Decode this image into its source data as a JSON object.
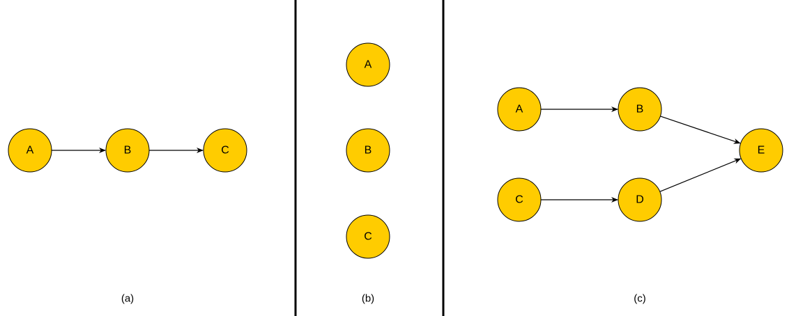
{
  "colors": {
    "node_fill": "#ffcc00",
    "node_stroke": "#000000",
    "edge": "#000000",
    "divider": "#000000"
  },
  "panels": [
    {
      "caption": "(a)",
      "nodes": [
        {
          "id": "a-A",
          "label": "A"
        },
        {
          "id": "a-B",
          "label": "B"
        },
        {
          "id": "a-C",
          "label": "C"
        }
      ],
      "edges": [
        {
          "from": "a-A",
          "to": "a-B"
        },
        {
          "from": "a-B",
          "to": "a-C"
        }
      ]
    },
    {
      "caption": "(b)",
      "nodes": [
        {
          "id": "b-A",
          "label": "A"
        },
        {
          "id": "b-B",
          "label": "B"
        },
        {
          "id": "b-C",
          "label": "C"
        }
      ],
      "edges": []
    },
    {
      "caption": "(c)",
      "nodes": [
        {
          "id": "c-A",
          "label": "A"
        },
        {
          "id": "c-B",
          "label": "B"
        },
        {
          "id": "c-C",
          "label": "C"
        },
        {
          "id": "c-D",
          "label": "D"
        },
        {
          "id": "c-E",
          "label": "E"
        }
      ],
      "edges": [
        {
          "from": "c-A",
          "to": "c-B"
        },
        {
          "from": "c-C",
          "to": "c-D"
        },
        {
          "from": "c-B",
          "to": "c-E"
        },
        {
          "from": "c-D",
          "to": "c-E"
        }
      ]
    }
  ]
}
